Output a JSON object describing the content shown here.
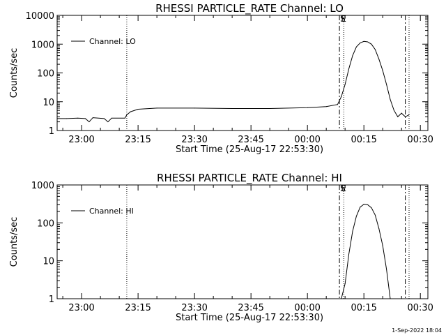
{
  "footer": {
    "timestamp": "1-Sep-2022 18:04"
  },
  "chart_data": [
    {
      "type": "line",
      "title": "RHESSI PARTICLE_RATE Channel: LO",
      "xlabel": "Start Time (25-Aug-17 22:53:30)",
      "ylabel": "Counts/sec",
      "y_scale": "log",
      "ylim": [
        1,
        10000
      ],
      "y_ticks": [
        "1",
        "10",
        "100",
        "1000",
        "10000"
      ],
      "x_range": [
        "22:53:30",
        "00:32:00"
      ],
      "x_ticks": [
        "23:00",
        "23:15",
        "23:30",
        "23:45",
        "00:00",
        "00:15",
        "00:30"
      ],
      "legend": {
        "label": "Channel: LO",
        "position": "top-left"
      },
      "markers": [
        {
          "time": "23:12:00",
          "style": "dotted",
          "label": ""
        },
        {
          "time": "00:08:30",
          "style": "dashed",
          "label": "S"
        },
        {
          "time": "00:09:40",
          "style": "dotted",
          "label": "E"
        },
        {
          "time": "00:26:00",
          "style": "dashed",
          "label": ""
        },
        {
          "time": "00:27:00",
          "style": "dotted",
          "label": ""
        }
      ],
      "series": [
        {
          "name": "Channel: LO",
          "points": [
            [
              "22:53:30",
              2.6
            ],
            [
              "22:56:00",
              2.6
            ],
            [
              "22:59:00",
              2.7
            ],
            [
              "23:01:00",
              2.6
            ],
            [
              "23:02:00",
              2.0
            ],
            [
              "23:03:00",
              2.8
            ],
            [
              "23:06:00",
              2.6
            ],
            [
              "23:07:00",
              2.0
            ],
            [
              "23:08:00",
              2.7
            ],
            [
              "23:11:30",
              2.7
            ],
            [
              "23:12:00",
              3.5
            ],
            [
              "23:13:00",
              4.5
            ],
            [
              "23:15:00",
              5.5
            ],
            [
              "23:20:00",
              6.0
            ],
            [
              "23:30:00",
              6.0
            ],
            [
              "23:40:00",
              5.8
            ],
            [
              "23:50:00",
              5.8
            ],
            [
              "00:00:00",
              6.2
            ],
            [
              "00:05:00",
              6.8
            ],
            [
              "00:08:00",
              8.0
            ],
            [
              "00:09:00",
              15
            ],
            [
              "00:10:00",
              40
            ],
            [
              "00:11:00",
              140
            ],
            [
              "00:12:00",
              400
            ],
            [
              "00:13:00",
              800
            ],
            [
              "00:14:00",
              1100
            ],
            [
              "00:15:00",
              1250
            ],
            [
              "00:16:00",
              1200
            ],
            [
              "00:17:00",
              1000
            ],
            [
              "00:18:00",
              650
            ],
            [
              "00:19:00",
              300
            ],
            [
              "00:20:00",
              120
            ],
            [
              "00:21:00",
              40
            ],
            [
              "00:22:00",
              12
            ],
            [
              "00:23:00",
              5
            ],
            [
              "00:24:00",
              3
            ],
            [
              "00:25:00",
              4
            ],
            [
              "00:26:00",
              3
            ],
            [
              "00:27:00",
              3.5
            ]
          ]
        }
      ]
    },
    {
      "type": "line",
      "title": "RHESSI PARTICLE_RATE Channel: HI",
      "xlabel": "Start Time (25-Aug-17 22:53:30)",
      "ylabel": "Counts/sec",
      "y_scale": "log",
      "ylim": [
        1,
        1000
      ],
      "y_ticks": [
        "1",
        "10",
        "100",
        "1000"
      ],
      "x_range": [
        "22:53:30",
        "00:32:00"
      ],
      "x_ticks": [
        "23:00",
        "23:15",
        "23:30",
        "23:45",
        "00:00",
        "00:15",
        "00:30"
      ],
      "legend": {
        "label": "Channel: HI",
        "position": "top-left"
      },
      "markers": [
        {
          "time": "23:12:00",
          "style": "dotted",
          "label": ""
        },
        {
          "time": "00:08:30",
          "style": "dashed",
          "label": "S"
        },
        {
          "time": "00:09:40",
          "style": "dotted",
          "label": "E"
        },
        {
          "time": "00:26:00",
          "style": "dashed",
          "label": ""
        },
        {
          "time": "00:27:00",
          "style": "dotted",
          "label": ""
        }
      ],
      "series": [
        {
          "name": "Channel: HI",
          "points": [
            [
              "00:09:00",
              1.0
            ],
            [
              "00:10:00",
              2.5
            ],
            [
              "00:11:00",
              15
            ],
            [
              "00:12:00",
              60
            ],
            [
              "00:13:00",
              150
            ],
            [
              "00:14:00",
              260
            ],
            [
              "00:15:00",
              310
            ],
            [
              "00:16:00",
              300
            ],
            [
              "00:17:00",
              250
            ],
            [
              "00:18:00",
              160
            ],
            [
              "00:19:00",
              70
            ],
            [
              "00:20:00",
              25
            ],
            [
              "00:21:00",
              6
            ],
            [
              "00:22:00",
              1.0
            ]
          ]
        }
      ]
    }
  ]
}
